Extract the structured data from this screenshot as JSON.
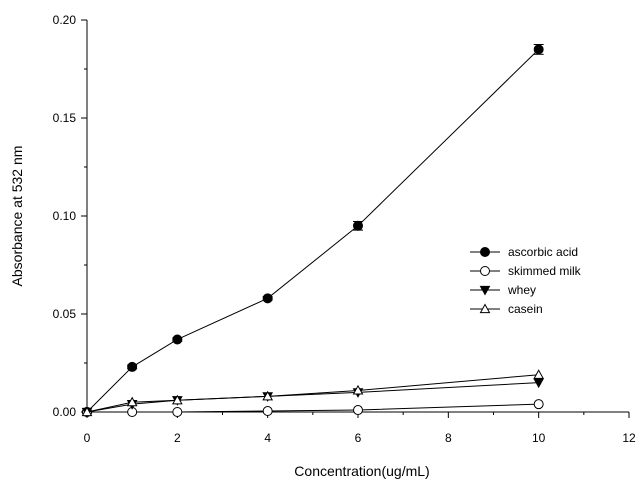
{
  "chart_data": {
    "type": "line",
    "xlabel": "Concentration(ug/mL)",
    "ylabel": "Absorbance at 532 nm",
    "xlim": [
      0,
      12
    ],
    "ylim": [
      0,
      0.2
    ],
    "x_ticks": [
      0,
      2,
      4,
      6,
      8,
      10,
      12
    ],
    "x_tick_labels": [
      "0",
      "2",
      "4",
      "6",
      "8",
      "10",
      "12"
    ],
    "y_ticks": [
      0,
      0.05,
      0.1,
      0.15,
      0.2
    ],
    "y_tick_labels": [
      "0.00",
      "0.05",
      "0.10",
      "0.15",
      "0.20"
    ],
    "grid": false,
    "legend_position": "right",
    "x": [
      0,
      1,
      2,
      4,
      6,
      10
    ],
    "series": [
      {
        "name": "ascorbic acid",
        "marker": "filled-circle",
        "values": [
          0.0,
          0.023,
          0.037,
          0.058,
          0.095,
          0.185
        ],
        "errors": [
          0.0005,
          0.001,
          0.0008,
          0.0008,
          0.0022,
          0.0025
        ]
      },
      {
        "name": "skimmed milk",
        "marker": "open-circle",
        "values": [
          0.0,
          0.0,
          0.0,
          0.0005,
          0.001,
          0.004
        ],
        "errors": [
          0,
          0,
          0,
          0,
          0,
          0
        ]
      },
      {
        "name": "whey",
        "marker": "filled-triangle-down",
        "values": [
          0.0,
          0.004,
          0.006,
          0.008,
          0.01,
          0.015
        ],
        "errors": [
          0,
          0,
          0,
          0,
          0,
          0
        ]
      },
      {
        "name": "casein",
        "marker": "open-triangle-up",
        "values": [
          0.0,
          0.005,
          0.006,
          0.008,
          0.011,
          0.019
        ],
        "errors": [
          0,
          0,
          0,
          0,
          0,
          0
        ]
      }
    ]
  }
}
